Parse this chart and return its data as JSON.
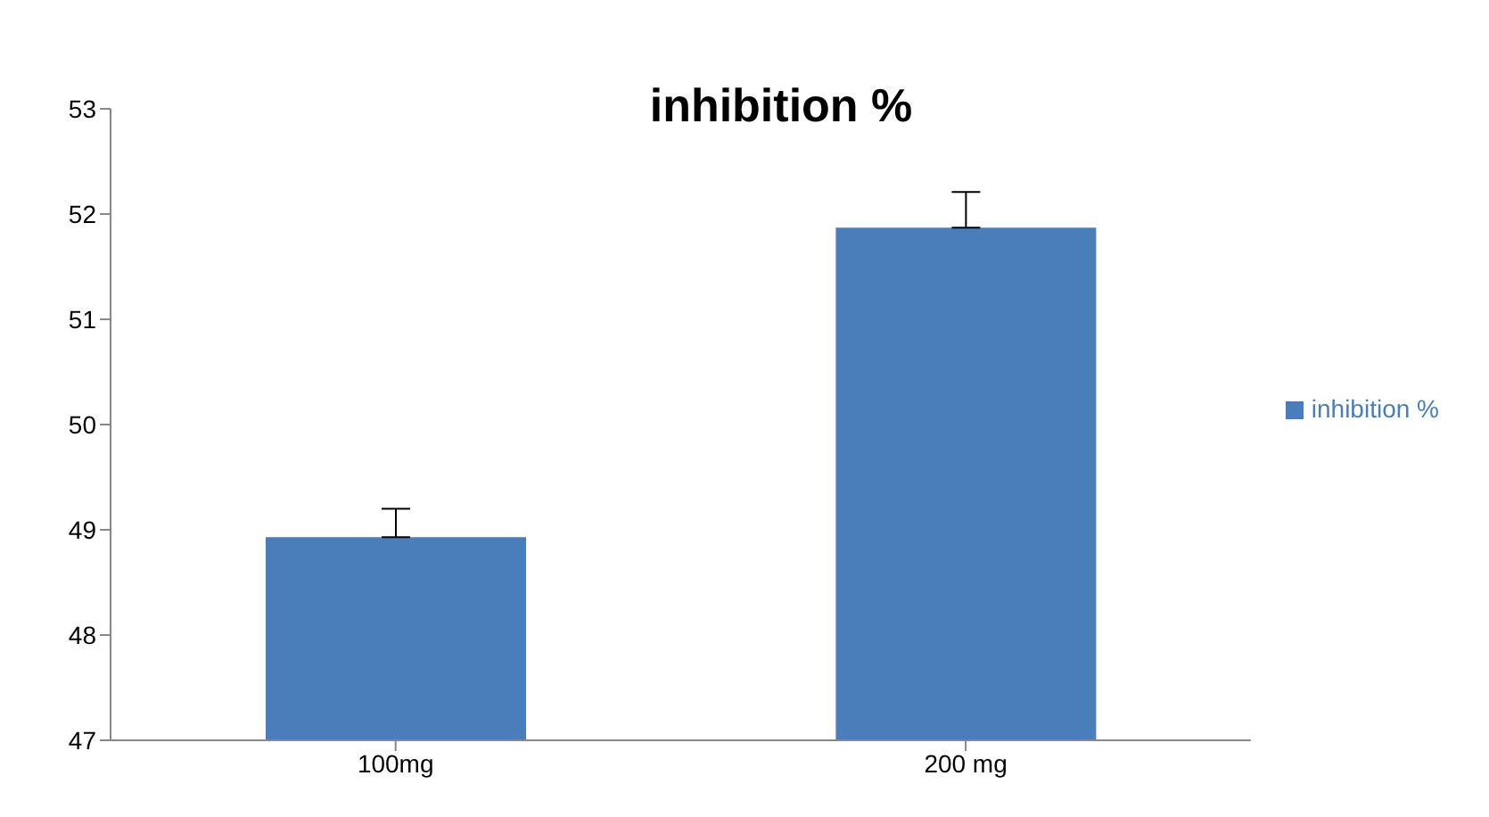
{
  "chart_data": {
    "type": "bar",
    "title": "inhibition %",
    "categories": [
      "100mg",
      "200 mg"
    ],
    "series": [
      {
        "name": "inhibition %",
        "color": "#4a7ebb",
        "values": [
          48.93,
          51.87
        ],
        "errors": [
          [
            48.93,
            49.2
          ],
          [
            51.87,
            52.21
          ]
        ]
      }
    ],
    "ylim": [
      47,
      53
    ],
    "yticks": [
      47,
      48,
      49,
      50,
      51,
      52,
      53
    ],
    "grid": false,
    "legend": "right"
  }
}
